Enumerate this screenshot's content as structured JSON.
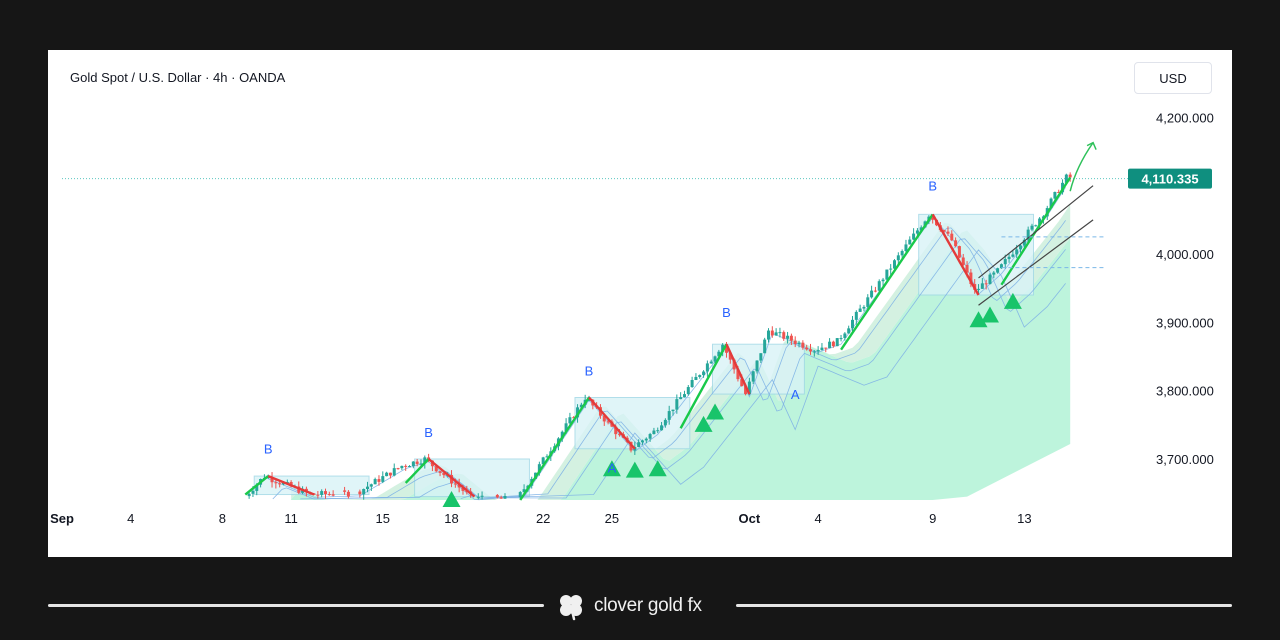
{
  "chart_data": {
    "type": "candlestick",
    "title": "Gold Spot / U.S. Dollar · 4h · OANDA",
    "currency": "USD",
    "price_axis": {
      "min": 3640,
      "max": 4240,
      "ticks": [
        "4,200.000",
        "4,000.000",
        "3,900.000",
        "3,800.000",
        "3,700.000"
      ],
      "tick_values": [
        4200,
        4000,
        3900,
        3800,
        3700
      ]
    },
    "current_price": {
      "label": "4,110.335",
      "value": 4110.335
    },
    "time_axis": {
      "start": "2025-09-01",
      "end": "2025-10-17",
      "labels": [
        {
          "text": "Sep",
          "date": "2025-09-01"
        },
        {
          "text": "4",
          "date": "2025-09-04"
        },
        {
          "text": "8",
          "date": "2025-09-08"
        },
        {
          "text": "11",
          "date": "2025-09-11"
        },
        {
          "text": "15",
          "date": "2025-09-15"
        },
        {
          "text": "18",
          "date": "2025-09-18"
        },
        {
          "text": "22",
          "date": "2025-09-22"
        },
        {
          "text": "25",
          "date": "2025-09-25"
        },
        {
          "text": "Oct",
          "date": "2025-10-01"
        },
        {
          "text": "4",
          "date": "2025-10-04"
        },
        {
          "text": "9",
          "date": "2025-10-09"
        },
        {
          "text": "13",
          "date": "2025-10-13"
        }
      ]
    },
    "price_path": [
      [
        "2025-09-09",
        3640
      ],
      [
        "2025-09-10",
        3675
      ],
      [
        "2025-09-12",
        3648
      ],
      [
        "2025-09-14",
        3650
      ],
      [
        "2025-09-16",
        3690
      ],
      [
        "2025-09-17",
        3700
      ],
      [
        "2025-09-19",
        3645
      ],
      [
        "2025-09-21",
        3640
      ],
      [
        "2025-09-24",
        3790
      ],
      [
        "2025-09-26",
        3715
      ],
      [
        "2025-09-27",
        3740
      ],
      [
        "2025-09-30",
        3868
      ],
      [
        "2025-10-01",
        3795
      ],
      [
        "2025-10-02",
        3888
      ],
      [
        "2025-10-04",
        3860
      ],
      [
        "2025-10-05",
        3872
      ],
      [
        "2025-10-09",
        4058
      ],
      [
        "2025-10-10",
        4020
      ],
      [
        "2025-10-11",
        3945
      ],
      [
        "2025-10-12",
        3975
      ],
      [
        "2025-10-14",
        4060
      ],
      [
        "2025-10-15",
        4112
      ]
    ],
    "zigzag_up": [
      [
        [
          "2025-09-09",
          3648
        ],
        [
          "2025-09-10",
          3675
        ]
      ],
      [
        [
          "2025-09-16",
          3665
        ],
        [
          "2025-09-17",
          3700
        ]
      ],
      [
        [
          "2025-09-21",
          3640
        ],
        [
          "2025-09-24",
          3790
        ]
      ],
      [
        [
          "2025-09-28",
          3745
        ],
        [
          "2025-09-30",
          3868
        ]
      ],
      [
        [
          "2025-10-05",
          3860
        ],
        [
          "2025-10-09",
          4058
        ]
      ],
      [
        [
          "2025-10-12",
          3955
        ],
        [
          "2025-10-15",
          4112
        ]
      ]
    ],
    "zigzag_down": [
      [
        [
          "2025-09-10",
          3675
        ],
        [
          "2025-09-12",
          3648
        ]
      ],
      [
        [
          "2025-09-17",
          3700
        ],
        [
          "2025-09-19",
          3645
        ]
      ],
      [
        [
          "2025-09-24",
          3790
        ],
        [
          "2025-09-26",
          3715
        ]
      ],
      [
        [
          "2025-09-30",
          3868
        ],
        [
          "2025-10-01",
          3795
        ]
      ],
      [
        [
          "2025-10-09",
          4058
        ],
        [
          "2025-10-11",
          3940
        ]
      ]
    ],
    "wave_labels": [
      {
        "text": "B",
        "date": "2025-09-10",
        "price": 3708,
        "color": "#2962ff"
      },
      {
        "text": "B",
        "date": "2025-09-17",
        "price": 3732,
        "color": "#2962ff"
      },
      {
        "text": "B",
        "date": "2025-09-24",
        "price": 3822,
        "color": "#2962ff"
      },
      {
        "text": "B",
        "date": "2025-09-30",
        "price": 3908,
        "color": "#2962ff"
      },
      {
        "text": "B",
        "date": "2025-10-09",
        "price": 4093,
        "color": "#2962ff"
      },
      {
        "text": "A",
        "date": "2025-09-25",
        "price": 3680,
        "color": "#2962ff"
      },
      {
        "text": "A",
        "date": "2025-10-03",
        "price": 3788,
        "color": "#2962ff"
      }
    ],
    "signals": [
      {
        "date": "2025-09-18",
        "price": 3640
      },
      {
        "date": "2025-09-25",
        "price": 3685
      },
      {
        "date": "2025-09-26",
        "price": 3683
      },
      {
        "date": "2025-09-27",
        "price": 3685
      },
      {
        "date": "2025-09-29",
        "price": 3750
      },
      {
        "date": "2025-09-29.5",
        "price": 3768
      },
      {
        "date": "2025-10-11",
        "price": 3903
      },
      {
        "date": "2025-10-11.5",
        "price": 3910
      },
      {
        "date": "2025-10-12.5",
        "price": 3930
      }
    ],
    "channel_lines": [
      [
        [
          "2025-10-11",
          3965
        ],
        [
          "2025-10-16",
          4100
        ]
      ],
      [
        [
          "2025-10-11",
          3925
        ],
        [
          "2025-10-16",
          4050
        ]
      ]
    ],
    "target_arrow": [
      [
        "2025-10-15",
        4092
      ],
      [
        "2025-10-16",
        4163
      ]
    ],
    "colors": {
      "up": "#26a69a",
      "down": "#ef5350",
      "zigzag_up": "#19c94a",
      "zigzag_down": "#e33a3a",
      "cloud_light": "#b9f3da",
      "cloud_mid": "#cdeedc",
      "band_line": "#7fb2e6",
      "signal": "#18c46a",
      "price_line": "#5cc7c0",
      "price_tag": "#0f8f7f"
    }
  },
  "footer": {
    "brand": "clover gold fx",
    "logo_icon": "clover-icon"
  }
}
